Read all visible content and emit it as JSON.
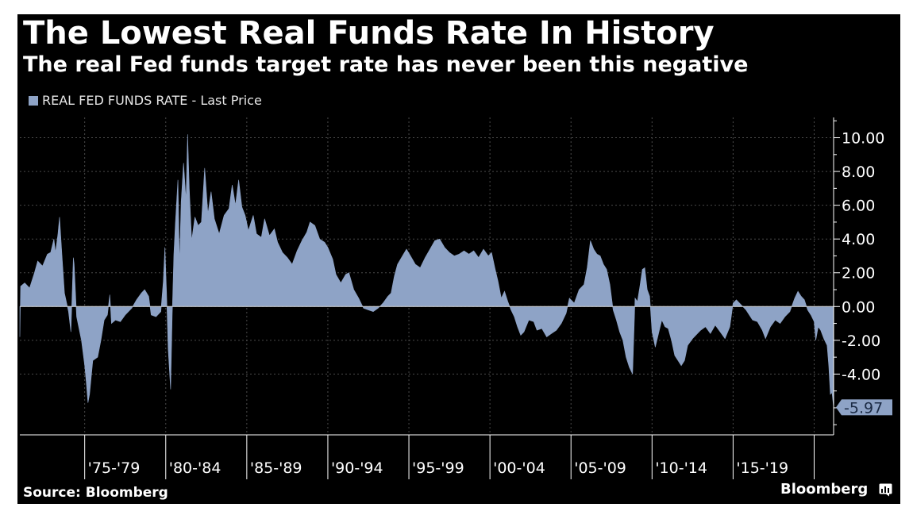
{
  "header": {
    "title": "The Lowest Real Funds Rate In History",
    "subtitle": "The real Fed funds target rate has never been this negative"
  },
  "legend": {
    "label": "REAL FED FUNDS RATE - Last Price"
  },
  "footer": {
    "source": "Source: Bloomberg",
    "brand": "Bloomberg"
  },
  "colors": {
    "series": "#8ea3c6",
    "background": "#000000",
    "text": "#ffffff",
    "grid": "#4a4a4a"
  },
  "chart_data": {
    "type": "area",
    "title": "The Lowest Real Funds Rate In History",
    "subtitle": "The real Fed funds target rate has never been this negative",
    "series_name": "REAL FED FUNDS RATE - Last Price",
    "x_range": [
      1971.0,
      2021.2
    ],
    "ylim": [
      -7.6,
      11.2
    ],
    "y_ticks": [
      10,
      8,
      6,
      4,
      2,
      0,
      -2,
      -4
    ],
    "y_tick_labels": [
      "10.00",
      "8.00",
      "6.00",
      "4.00",
      "2.00",
      "0.00",
      "-2.00",
      "-4.00"
    ],
    "x_period_bounds": [
      1975,
      1980,
      1985,
      1990,
      1995,
      2000,
      2005,
      2010,
      2015,
      2020
    ],
    "x_tick_labels": [
      "'75-'79",
      "'80-'84",
      "'85-'89",
      "'90-'94",
      "'95-'99",
      "'00-'04",
      "'05-'09",
      "'10-'14",
      "'15-'19"
    ],
    "grid": true,
    "last_price": -5.97,
    "last_price_label": "-5.97",
    "points": [
      [
        1971.0,
        -1.8
      ],
      [
        1971.05,
        1.2
      ],
      [
        1971.3,
        1.4
      ],
      [
        1971.6,
        1.1
      ],
      [
        1971.9,
        2.0
      ],
      [
        1972.1,
        2.7
      ],
      [
        1972.4,
        2.4
      ],
      [
        1972.7,
        3.1
      ],
      [
        1972.9,
        3.2
      ],
      [
        1973.1,
        4.0
      ],
      [
        1973.2,
        3.2
      ],
      [
        1973.35,
        4.3
      ],
      [
        1973.45,
        5.3
      ],
      [
        1973.6,
        3.0
      ],
      [
        1973.75,
        0.8
      ],
      [
        1974.0,
        -0.3
      ],
      [
        1974.15,
        -1.5
      ],
      [
        1974.3,
        2.9
      ],
      [
        1974.35,
        2.5
      ],
      [
        1974.5,
        -0.6
      ],
      [
        1974.8,
        -2.0
      ],
      [
        1975.0,
        -3.5
      ],
      [
        1975.1,
        -4.5
      ],
      [
        1975.2,
        -5.7
      ],
      [
        1975.3,
        -5.2
      ],
      [
        1975.5,
        -3.2
      ],
      [
        1975.8,
        -3.0
      ],
      [
        1976.0,
        -2.0
      ],
      [
        1976.2,
        -0.8
      ],
      [
        1976.4,
        -0.5
      ],
      [
        1976.55,
        0.7
      ],
      [
        1976.65,
        -1.0
      ],
      [
        1976.9,
        -0.8
      ],
      [
        1977.2,
        -0.9
      ],
      [
        1977.5,
        -0.5
      ],
      [
        1977.9,
        -0.1
      ],
      [
        1978.2,
        0.4
      ],
      [
        1978.5,
        0.8
      ],
      [
        1978.7,
        1.0
      ],
      [
        1978.95,
        0.6
      ],
      [
        1979.1,
        -0.5
      ],
      [
        1979.4,
        -0.6
      ],
      [
        1979.7,
        -0.3
      ],
      [
        1979.85,
        1.5
      ],
      [
        1979.95,
        3.5
      ],
      [
        1980.05,
        0.8
      ],
      [
        1980.15,
        -2.5
      ],
      [
        1980.3,
        -4.9
      ],
      [
        1980.4,
        -0.5
      ],
      [
        1980.5,
        3.1
      ],
      [
        1980.6,
        5.0
      ],
      [
        1980.75,
        7.5
      ],
      [
        1980.85,
        2.5
      ],
      [
        1980.95,
        6.2
      ],
      [
        1981.1,
        8.5
      ],
      [
        1981.25,
        6.3
      ],
      [
        1981.35,
        10.2
      ],
      [
        1981.45,
        7.0
      ],
      [
        1981.6,
        3.9
      ],
      [
        1981.8,
        5.3
      ],
      [
        1982.0,
        4.8
      ],
      [
        1982.2,
        5.0
      ],
      [
        1982.4,
        8.2
      ],
      [
        1982.6,
        5.5
      ],
      [
        1982.8,
        6.8
      ],
      [
        1983.0,
        5.2
      ],
      [
        1983.3,
        4.3
      ],
      [
        1983.6,
        5.4
      ],
      [
        1983.9,
        5.8
      ],
      [
        1984.1,
        7.2
      ],
      [
        1984.3,
        6.0
      ],
      [
        1984.5,
        7.5
      ],
      [
        1984.7,
        5.9
      ],
      [
        1984.9,
        5.4
      ],
      [
        1985.1,
        4.5
      ],
      [
        1985.4,
        5.4
      ],
      [
        1985.6,
        4.3
      ],
      [
        1985.9,
        4.1
      ],
      [
        1986.1,
        5.2
      ],
      [
        1986.4,
        4.2
      ],
      [
        1986.7,
        4.6
      ],
      [
        1986.9,
        3.8
      ],
      [
        1987.2,
        3.2
      ],
      [
        1987.5,
        2.9
      ],
      [
        1987.8,
        2.5
      ],
      [
        1988.1,
        3.3
      ],
      [
        1988.4,
        3.9
      ],
      [
        1988.7,
        4.4
      ],
      [
        1988.9,
        5.0
      ],
      [
        1989.2,
        4.8
      ],
      [
        1989.5,
        4.0
      ],
      [
        1989.8,
        3.8
      ],
      [
        1990.0,
        3.5
      ],
      [
        1990.3,
        2.8
      ],
      [
        1990.5,
        1.9
      ],
      [
        1990.8,
        1.4
      ],
      [
        1991.1,
        1.9
      ],
      [
        1991.3,
        2.0
      ],
      [
        1991.6,
        1.0
      ],
      [
        1991.9,
        0.5
      ],
      [
        1992.2,
        -0.1
      ],
      [
        1992.5,
        -0.2
      ],
      [
        1992.8,
        -0.3
      ],
      [
        1993.1,
        -0.1
      ],
      [
        1993.4,
        0.2
      ],
      [
        1993.7,
        0.6
      ],
      [
        1993.9,
        0.8
      ],
      [
        1994.1,
        1.8
      ],
      [
        1994.3,
        2.5
      ],
      [
        1994.6,
        3.0
      ],
      [
        1994.85,
        3.4
      ],
      [
        1995.1,
        3.0
      ],
      [
        1995.4,
        2.5
      ],
      [
        1995.7,
        2.3
      ],
      [
        1996.0,
        2.9
      ],
      [
        1996.3,
        3.4
      ],
      [
        1996.6,
        3.9
      ],
      [
        1996.9,
        4.0
      ],
      [
        1997.2,
        3.5
      ],
      [
        1997.5,
        3.2
      ],
      [
        1997.8,
        3.0
      ],
      [
        1998.1,
        3.1
      ],
      [
        1998.4,
        3.3
      ],
      [
        1998.7,
        3.1
      ],
      [
        1999.0,
        3.3
      ],
      [
        1999.3,
        2.9
      ],
      [
        1999.6,
        3.4
      ],
      [
        1999.9,
        3.0
      ],
      [
        2000.1,
        3.2
      ],
      [
        2000.3,
        2.3
      ],
      [
        2000.5,
        1.5
      ],
      [
        2000.7,
        0.5
      ],
      [
        2000.9,
        0.9
      ],
      [
        2001.1,
        0.3
      ],
      [
        2001.3,
        -0.2
      ],
      [
        2001.5,
        -0.6
      ],
      [
        2001.7,
        -1.2
      ],
      [
        2001.9,
        -1.7
      ],
      [
        2002.1,
        -1.5
      ],
      [
        2002.4,
        -0.8
      ],
      [
        2002.7,
        -0.9
      ],
      [
        2002.9,
        -1.4
      ],
      [
        2003.2,
        -1.3
      ],
      [
        2003.5,
        -1.8
      ],
      [
        2003.8,
        -1.6
      ],
      [
        2004.1,
        -1.4
      ],
      [
        2004.4,
        -1.0
      ],
      [
        2004.7,
        -0.4
      ],
      [
        2004.9,
        0.5
      ],
      [
        2005.2,
        0.2
      ],
      [
        2005.5,
        1.0
      ],
      [
        2005.8,
        1.3
      ],
      [
        2006.0,
        2.3
      ],
      [
        2006.2,
        3.9
      ],
      [
        2006.4,
        3.4
      ],
      [
        2006.6,
        3.1
      ],
      [
        2006.8,
        3.0
      ],
      [
        2007.0,
        2.5
      ],
      [
        2007.2,
        2.2
      ],
      [
        2007.4,
        1.3
      ],
      [
        2007.6,
        -0.2
      ],
      [
        2007.8,
        -0.8
      ],
      [
        2008.0,
        -1.5
      ],
      [
        2008.2,
        -2.0
      ],
      [
        2008.4,
        -3.0
      ],
      [
        2008.6,
        -3.6
      ],
      [
        2008.8,
        -4.0
      ],
      [
        2008.95,
        0.5
      ],
      [
        2009.1,
        0.3
      ],
      [
        2009.25,
        1.2
      ],
      [
        2009.4,
        2.2
      ],
      [
        2009.55,
        2.3
      ],
      [
        2009.7,
        1.0
      ],
      [
        2009.85,
        0.6
      ],
      [
        2010.0,
        -1.5
      ],
      [
        2010.2,
        -2.4
      ],
      [
        2010.4,
        -1.6
      ],
      [
        2010.6,
        -0.8
      ],
      [
        2010.8,
        -1.2
      ],
      [
        2011.0,
        -1.3
      ],
      [
        2011.2,
        -2.0
      ],
      [
        2011.4,
        -2.9
      ],
      [
        2011.6,
        -3.2
      ],
      [
        2011.8,
        -3.5
      ],
      [
        2012.0,
        -3.2
      ],
      [
        2012.2,
        -2.3
      ],
      [
        2012.5,
        -1.9
      ],
      [
        2012.8,
        -1.6
      ],
      [
        2013.0,
        -1.4
      ],
      [
        2013.3,
        -1.2
      ],
      [
        2013.6,
        -1.6
      ],
      [
        2013.9,
        -1.1
      ],
      [
        2014.2,
        -1.5
      ],
      [
        2014.5,
        -1.9
      ],
      [
        2014.8,
        -1.2
      ],
      [
        2015.0,
        0.2
      ],
      [
        2015.2,
        0.4
      ],
      [
        2015.5,
        0.1
      ],
      [
        2015.8,
        -0.2
      ],
      [
        2016.0,
        -0.5
      ],
      [
        2016.2,
        -0.8
      ],
      [
        2016.5,
        -0.9
      ],
      [
        2016.8,
        -1.4
      ],
      [
        2017.0,
        -1.9
      ],
      [
        2017.3,
        -1.2
      ],
      [
        2017.6,
        -0.8
      ],
      [
        2017.9,
        -1.0
      ],
      [
        2018.2,
        -0.6
      ],
      [
        2018.5,
        -0.3
      ],
      [
        2018.8,
        0.5
      ],
      [
        2019.0,
        0.9
      ],
      [
        2019.2,
        0.6
      ],
      [
        2019.4,
        0.4
      ],
      [
        2019.6,
        -0.2
      ],
      [
        2019.8,
        -0.5
      ],
      [
        2020.0,
        -0.9
      ],
      [
        2020.1,
        -2.0
      ],
      [
        2020.25,
        -1.2
      ],
      [
        2020.4,
        -1.4
      ],
      [
        2020.6,
        -1.9
      ],
      [
        2020.8,
        -2.3
      ],
      [
        2020.9,
        -3.5
      ],
      [
        2021.0,
        -5.2
      ],
      [
        2021.1,
        -5.1
      ],
      [
        2021.2,
        -5.97
      ]
    ]
  }
}
